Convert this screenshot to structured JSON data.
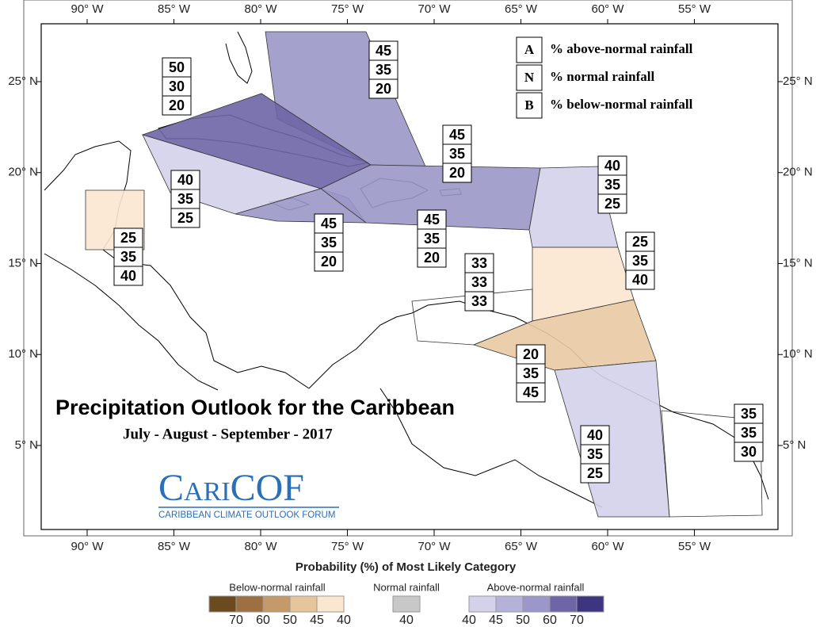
{
  "map": {
    "lon_labels": [
      "90° W",
      "85° W",
      "80° W",
      "75° W",
      "70° W",
      "65° W",
      "60° W",
      "55° W"
    ],
    "lat_labels": [
      "25° N",
      "20° N",
      "15° N",
      "10° N",
      "5° N"
    ]
  },
  "key": [
    {
      "letter": "A",
      "text": "% above-normal rainfall"
    },
    {
      "letter": "N",
      "text": "% normal rainfall"
    },
    {
      "letter": "B",
      "text": "% below-normal rainfall"
    }
  ],
  "regions": [
    {
      "values": [
        45,
        35,
        20
      ]
    },
    {
      "values": [
        50,
        30,
        20
      ]
    },
    {
      "values": [
        40,
        35,
        25
      ]
    },
    {
      "values": [
        45,
        35,
        20
      ]
    },
    {
      "values": [
        45,
        35,
        20
      ]
    },
    {
      "values": [
        45,
        35,
        20
      ]
    },
    {
      "values": [
        40,
        35,
        25
      ]
    },
    {
      "values": [
        25,
        35,
        40
      ]
    },
    {
      "values": [
        20,
        35,
        45
      ]
    },
    {
      "values": [
        40,
        35,
        25
      ]
    },
    {
      "values": [
        35,
        35,
        30
      ]
    },
    {
      "values": [
        25,
        35,
        40
      ]
    },
    {
      "values": [
        33,
        33,
        33
      ]
    }
  ],
  "title": "Precipitation Outlook for the Caribbean",
  "subtitle": "July - August - September - 2017",
  "logo": {
    "name": "CariCOF",
    "tagline": "CARIBBEAN CLIMATE OUTLOOK FORUM"
  },
  "legend": {
    "title": "Probability (%) of Most Likely Category",
    "below": {
      "label": "Below-normal rainfall",
      "ticks": [
        70,
        60,
        50,
        45,
        40
      ]
    },
    "normal": {
      "label": "Normal rainfall",
      "ticks": [
        40
      ]
    },
    "above": {
      "label": "Above-normal rainfall",
      "ticks": [
        40,
        45,
        50,
        60,
        70
      ]
    }
  }
}
